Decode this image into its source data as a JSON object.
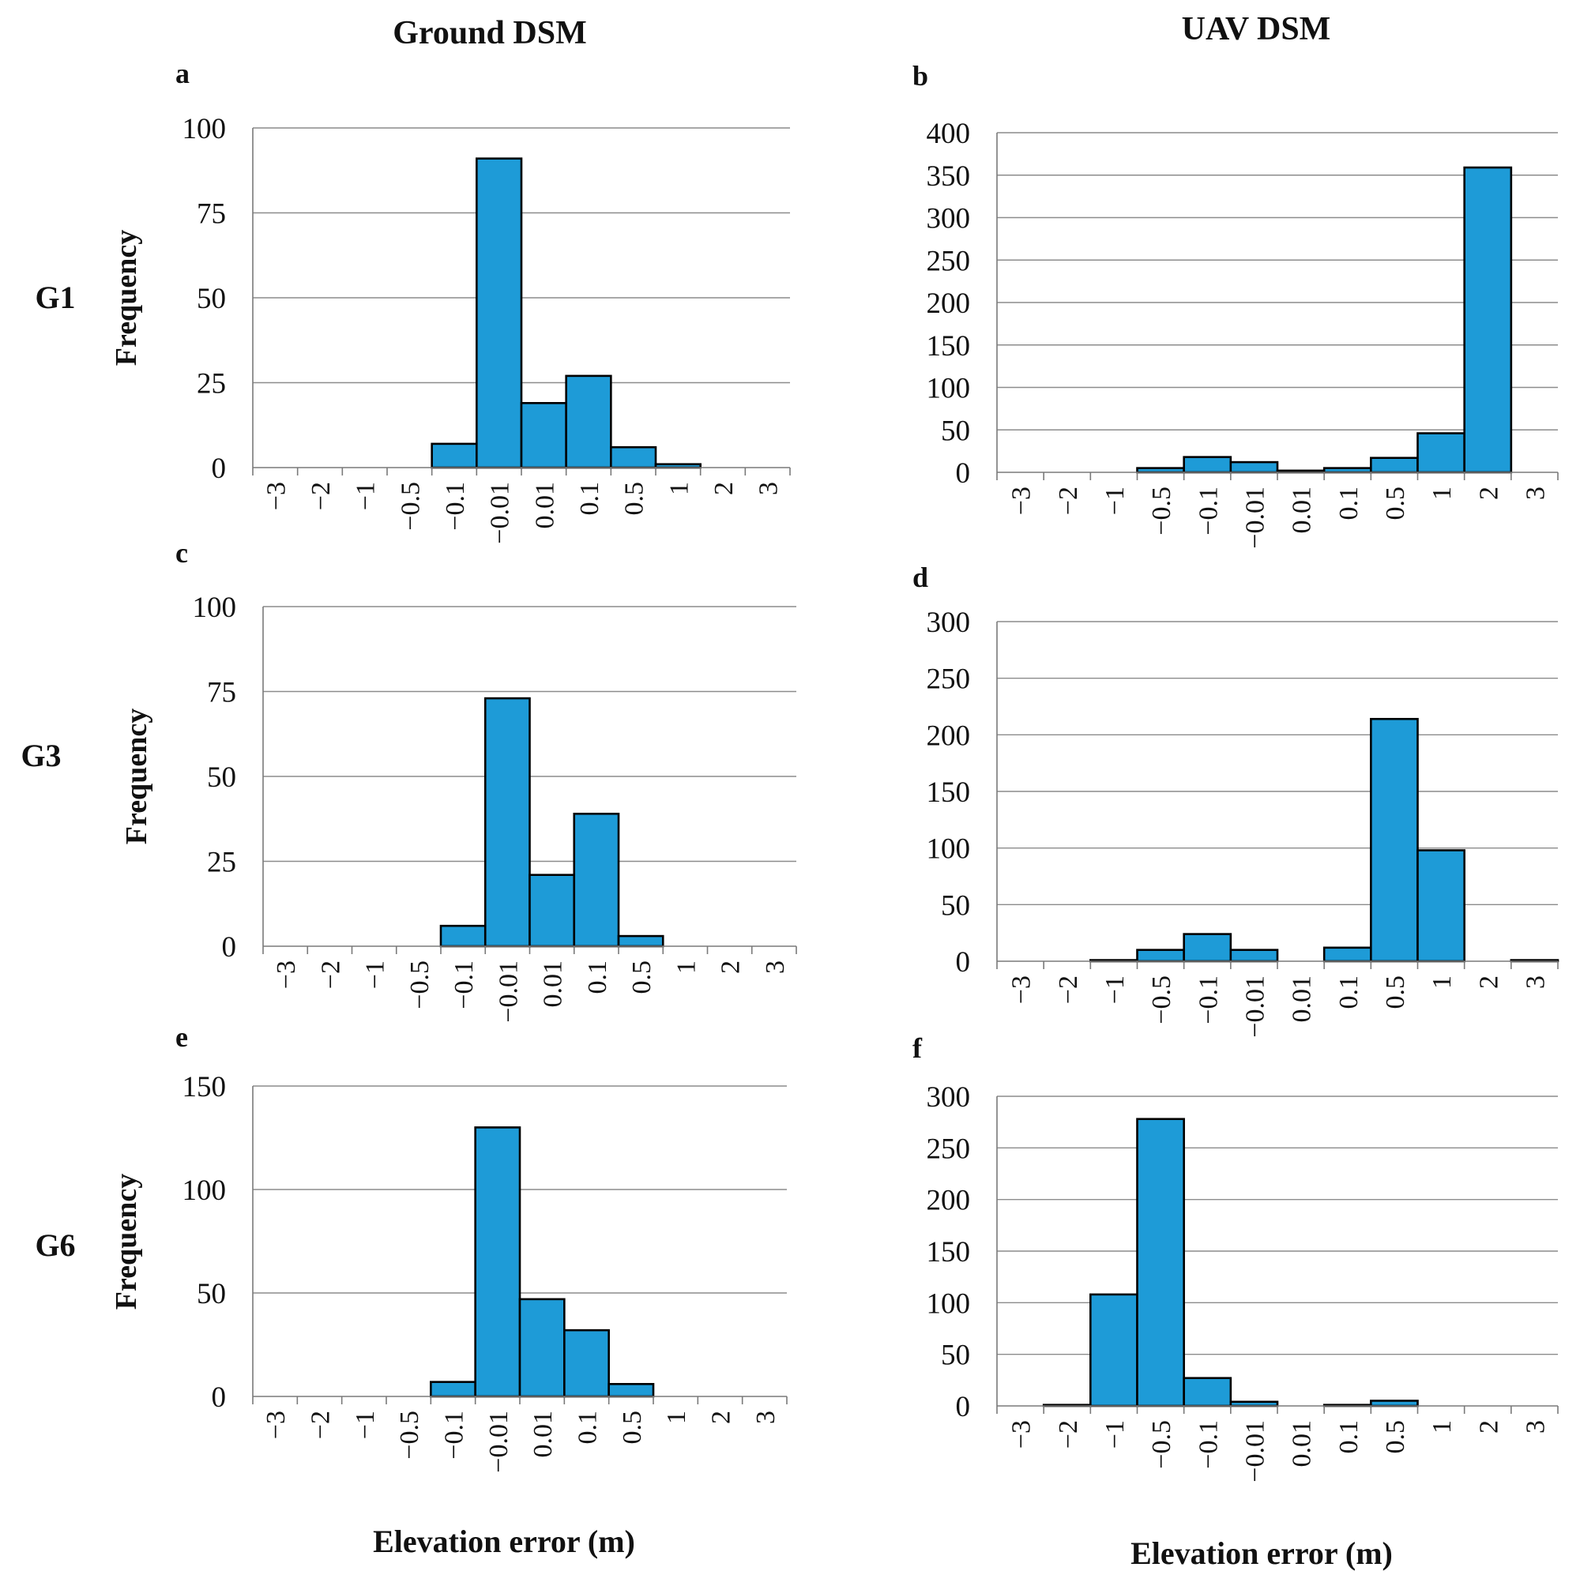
{
  "figure": {
    "column_titles": [
      "Ground DSM",
      "UAV DSM"
    ],
    "row_labels": [
      "G1",
      "G3",
      "G6"
    ],
    "xlabel": "Elevation error (m)",
    "ylabel": "Frequency",
    "bar_color": "#1e9bd7"
  },
  "chart_data": [
    {
      "panel": "a",
      "type": "bar",
      "column": "Ground DSM",
      "row": "G1",
      "categories": [
        "−3",
        "−2",
        "−1",
        "−0.5",
        "−0.1",
        "−0.01",
        "0.01",
        "0.1",
        "0.5",
        "1",
        "2",
        "3"
      ],
      "values": [
        0,
        0,
        0,
        0,
        7,
        91,
        19,
        27,
        6,
        1,
        0,
        0
      ],
      "ylim": [
        0,
        100
      ],
      "yticks": [
        0,
        25,
        50,
        75,
        100
      ],
      "ylabel": "Frequency",
      "xlabel": ""
    },
    {
      "panel": "b",
      "type": "bar",
      "column": "UAV DSM",
      "row": "G1",
      "categories": [
        "−3",
        "−2",
        "−1",
        "−0.5",
        "−0.1",
        "−0.01",
        "0.01",
        "0.1",
        "0.5",
        "1",
        "2",
        "3"
      ],
      "values": [
        0,
        0,
        0,
        5,
        18,
        12,
        2,
        5,
        17,
        46,
        359,
        0
      ],
      "ylim": [
        0,
        400
      ],
      "yticks": [
        0,
        50,
        100,
        150,
        200,
        250,
        300,
        350,
        400
      ],
      "ylabel": "",
      "xlabel": ""
    },
    {
      "panel": "c",
      "type": "bar",
      "column": "Ground DSM",
      "row": "G3",
      "categories": [
        "−3",
        "−2",
        "−1",
        "−0.5",
        "−0.1",
        "−0.01",
        "0.01",
        "0.1",
        "0.5",
        "1",
        "2",
        "3"
      ],
      "values": [
        0,
        0,
        0,
        0,
        6,
        73,
        21,
        39,
        3,
        0,
        0,
        0
      ],
      "ylim": [
        0,
        100
      ],
      "yticks": [
        0,
        25,
        50,
        75,
        100
      ],
      "ylabel": "Frequency",
      "xlabel": ""
    },
    {
      "panel": "d",
      "type": "bar",
      "column": "UAV DSM",
      "row": "G3",
      "categories": [
        "−3",
        "−2",
        "−1",
        "−0.5",
        "−0.1",
        "−0.01",
        "0.01",
        "0.1",
        "0.5",
        "1",
        "2",
        "3"
      ],
      "values": [
        0,
        0,
        1,
        10,
        24,
        10,
        0,
        12,
        214,
        98,
        0,
        1
      ],
      "ylim": [
        0,
        300
      ],
      "yticks": [
        0,
        50,
        100,
        150,
        200,
        250,
        300
      ],
      "ylabel": "",
      "xlabel": ""
    },
    {
      "panel": "e",
      "type": "bar",
      "column": "Ground DSM",
      "row": "G6",
      "categories": [
        "−3",
        "−2",
        "−1",
        "−0.5",
        "−0.1",
        "−0.01",
        "0.01",
        "0.1",
        "0.5",
        "1",
        "2",
        "3"
      ],
      "values": [
        0,
        0,
        0,
        0,
        7,
        130,
        47,
        32,
        6,
        0,
        0,
        0
      ],
      "ylim": [
        0,
        150
      ],
      "yticks": [
        0,
        50,
        100,
        150
      ],
      "ylabel": "Frequency",
      "xlabel": "Elevation error (m)"
    },
    {
      "panel": "f",
      "type": "bar",
      "column": "UAV DSM",
      "row": "G6",
      "categories": [
        "−3",
        "−2",
        "−1",
        "−0.5",
        "−0.1",
        "−0.01",
        "0.01",
        "0.1",
        "0.5",
        "1",
        "2",
        "3"
      ],
      "values": [
        0,
        1,
        108,
        278,
        27,
        4,
        0,
        1,
        5,
        0,
        0,
        0
      ],
      "ylim": [
        0,
        300
      ],
      "yticks": [
        0,
        50,
        100,
        150,
        200,
        250,
        300
      ],
      "ylabel": "",
      "xlabel": "Elevation error (m)"
    }
  ]
}
